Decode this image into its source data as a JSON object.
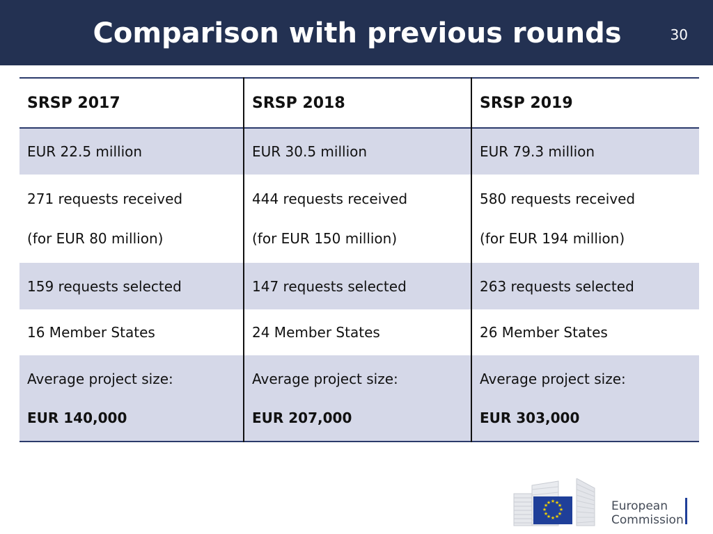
{
  "slide": {
    "title": "Comparison with previous rounds",
    "page_number": "30"
  },
  "table": {
    "headers": [
      "SRSP 2017",
      "SRSP 2018",
      "SRSP 2019"
    ],
    "funding": [
      "EUR 22.5 million",
      "EUR 30.5 million",
      "EUR 79.3 million"
    ],
    "requests_received": [
      "271 requests received",
      "444 requests received",
      "580 requests received"
    ],
    "requests_amount": [
      "(for EUR 80 million)",
      "(for EUR 150 million)",
      "(for EUR 194 million)"
    ],
    "requests_selected": [
      "159 requests selected",
      "147 requests selected",
      "263 requests selected"
    ],
    "member_states": [
      "16 Member States",
      "24 Member States",
      "26 Member States"
    ],
    "avg_label": [
      "Average project size:",
      "Average project size:",
      "Average project size:"
    ],
    "avg_value": [
      "EUR 140,000",
      "EUR 207,000",
      "EUR 303,000"
    ]
  },
  "logo": {
    "line1": "European",
    "line2": "Commission",
    "flag_color": "#1f3f99",
    "star_color": "#f2d200"
  },
  "colors": {
    "header_bg": "#233152",
    "row_shade": "#d5d8e8"
  }
}
